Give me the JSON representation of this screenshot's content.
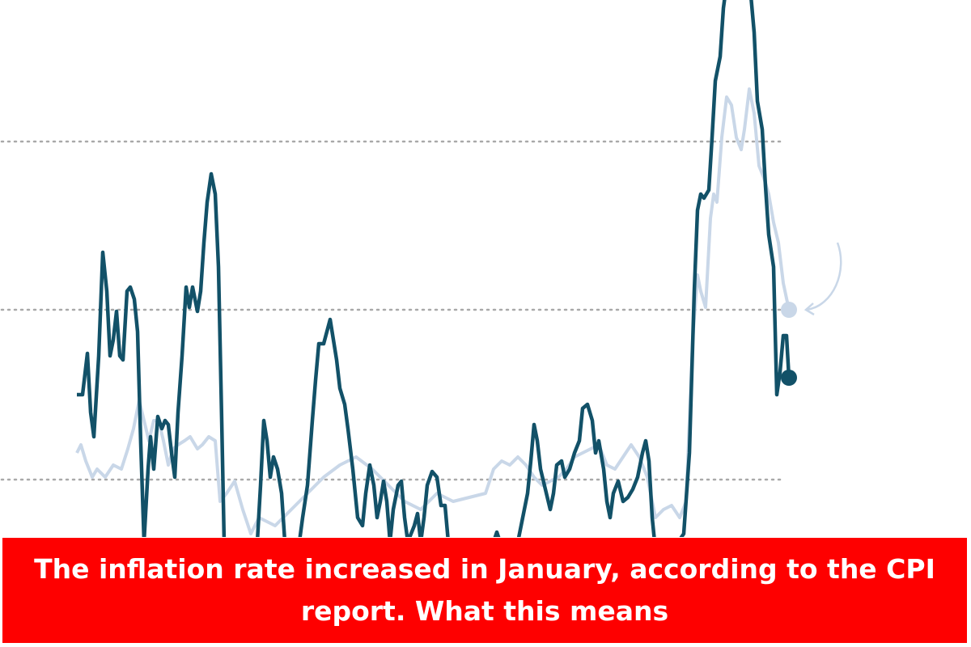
{
  "caption": {
    "lines": [
      "The inflation rate increased in January, according to the CPI",
      "report. What this means"
    ]
  }
}
